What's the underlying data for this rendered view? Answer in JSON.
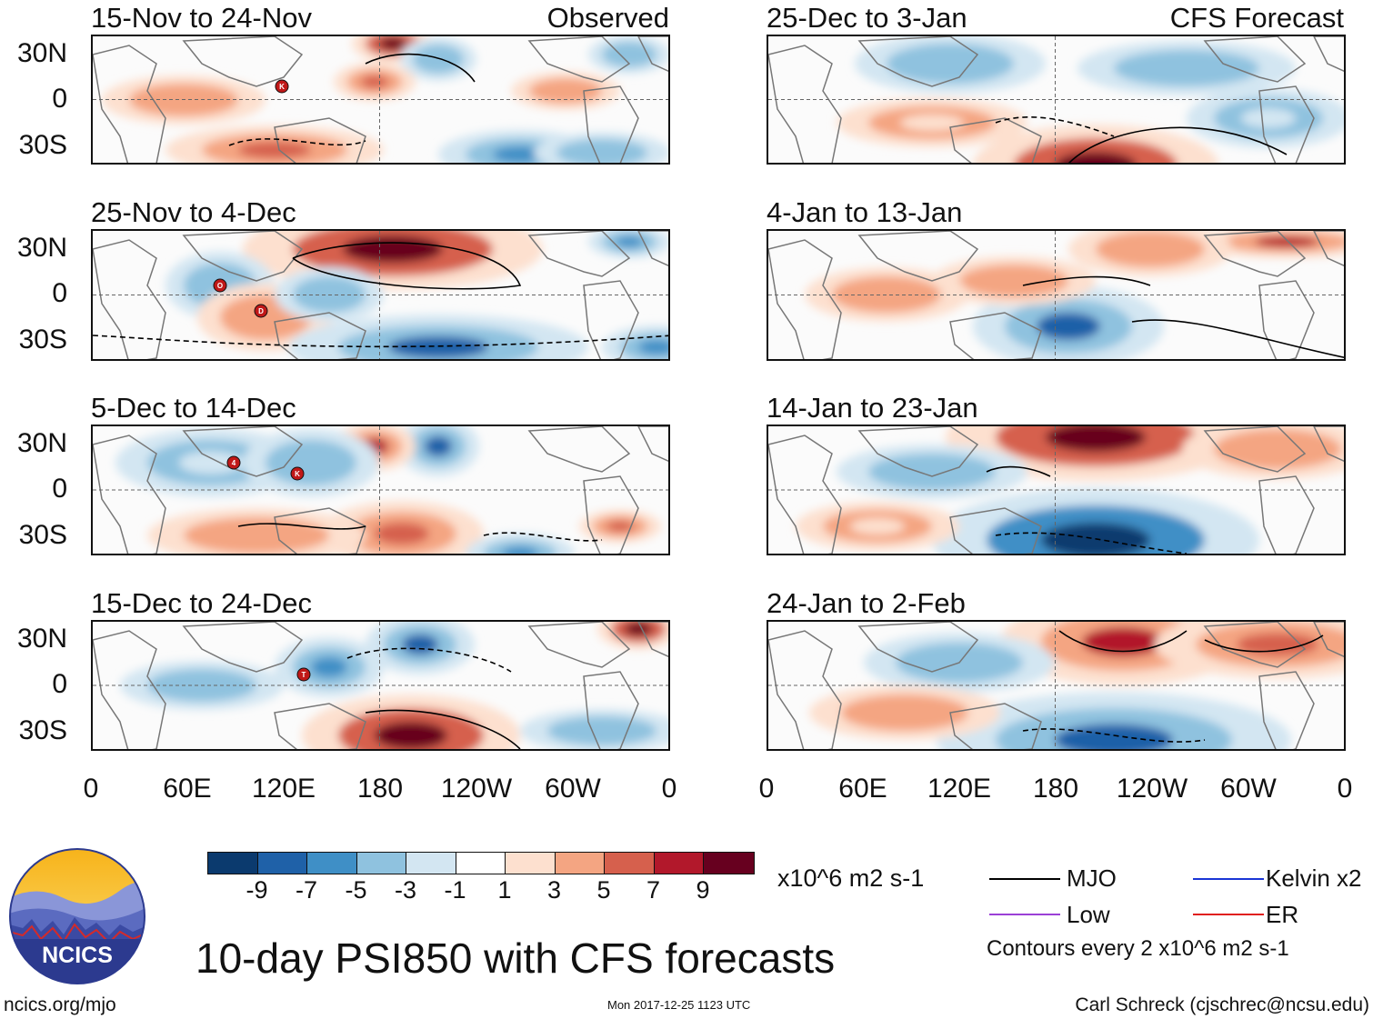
{
  "panels": {
    "observed": [
      {
        "title": "15-Nov to 24-Nov",
        "subtitle": "Observed"
      },
      {
        "title": "25-Nov to 4-Dec",
        "subtitle": ""
      },
      {
        "title": "5-Dec to 14-Dec",
        "subtitle": ""
      },
      {
        "title": "15-Dec to 24-Dec",
        "subtitle": ""
      }
    ],
    "forecast": [
      {
        "title": "25-Dec to 3-Jan",
        "subtitle": "CFS Forecast"
      },
      {
        "title": "4-Jan to 13-Jan",
        "subtitle": ""
      },
      {
        "title": "14-Jan to 23-Jan",
        "subtitle": ""
      },
      {
        "title": "24-Jan to 2-Feb",
        "subtitle": ""
      }
    ]
  },
  "lat_labels": [
    "30N",
    "0",
    "30S"
  ],
  "lon_labels": [
    "0",
    "60E",
    "120E",
    "180",
    "120W",
    "60W",
    "0"
  ],
  "storm_markers": {
    "panel_0": [
      "K"
    ],
    "panel_1": [
      "O",
      "D"
    ],
    "panel_2": [
      "4",
      "K"
    ],
    "panel_3": [
      "T"
    ]
  },
  "colorbar": {
    "colors": [
      "#0b3a6e",
      "#1f61a8",
      "#3f8fc6",
      "#8fc2df",
      "#d3e6f2",
      "#ffffff",
      "#fde0cf",
      "#f4a582",
      "#d6604d",
      "#b2182b",
      "#67001f"
    ],
    "ticks": [
      "-9",
      "-7",
      "-5",
      "-3",
      "-1",
      "1",
      "3",
      "5",
      "7",
      "9"
    ],
    "units": "x10^6 m2 s-1"
  },
  "legend": {
    "items": [
      {
        "label": "MJO",
        "color": "#000000"
      },
      {
        "label": "Kelvin x2",
        "color": "#1a35d6"
      },
      {
        "label": "Low",
        "color": "#9b3fd6"
      },
      {
        "label": "ER",
        "color": "#e0201f"
      }
    ],
    "contour_note": "Contours every 2 x10^6 m2 s-1"
  },
  "main_title": "10-day PSI850 with CFS forecasts",
  "footer": {
    "left": "ncics.org/mjo",
    "middle": "Mon 2017-12-25 1123 UTC",
    "right": "Carl Schreck (cjschrec@ncsu.edu)"
  },
  "logo_text": "NCICS"
}
